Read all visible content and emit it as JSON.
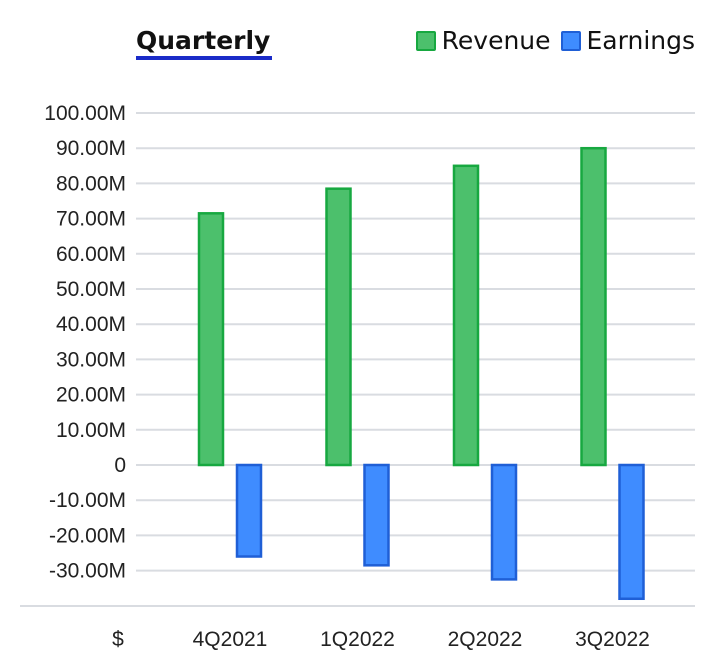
{
  "header": {
    "tab_label": "Quarterly"
  },
  "legend": [
    {
      "name": "Revenue",
      "color": "#4cc06c",
      "border": "#17a840"
    },
    {
      "name": "Earnings",
      "color": "#3f8cff",
      "border": "#1f5fd6"
    }
  ],
  "chart_data": {
    "type": "bar",
    "title": "",
    "xlabel": "",
    "ylabel": "",
    "currency_symbol": "$",
    "categories": [
      "4Q2021",
      "1Q2022",
      "2Q2022",
      "3Q2022"
    ],
    "series": [
      {
        "name": "Revenue",
        "color": "#4cc06c",
        "border": "#17a840",
        "values": [
          71.5,
          78.5,
          85.0,
          90.0
        ]
      },
      {
        "name": "Earnings",
        "color": "#3f8cff",
        "border": "#1f5fd6",
        "values": [
          -26.0,
          -28.5,
          -32.5,
          -38.0
        ]
      }
    ],
    "ylim": [
      -40,
      100
    ],
    "yticks": [
      {
        "value": 100,
        "label": "100.00M"
      },
      {
        "value": 90,
        "label": "90.00M"
      },
      {
        "value": 80,
        "label": "80.00M"
      },
      {
        "value": 70,
        "label": "70.00M"
      },
      {
        "value": 60,
        "label": "60.00M"
      },
      {
        "value": 50,
        "label": "50.00M"
      },
      {
        "value": 40,
        "label": "40.00M"
      },
      {
        "value": 30,
        "label": "30.00M"
      },
      {
        "value": 20,
        "label": "20.00M"
      },
      {
        "value": 10,
        "label": "10.00M"
      },
      {
        "value": 0,
        "label": "0"
      },
      {
        "value": -10,
        "label": "-10.00M"
      },
      {
        "value": -20,
        "label": "-20.00M"
      },
      {
        "value": -30,
        "label": "-30.00M"
      }
    ],
    "grid": true,
    "legend_position": "top-right"
  }
}
